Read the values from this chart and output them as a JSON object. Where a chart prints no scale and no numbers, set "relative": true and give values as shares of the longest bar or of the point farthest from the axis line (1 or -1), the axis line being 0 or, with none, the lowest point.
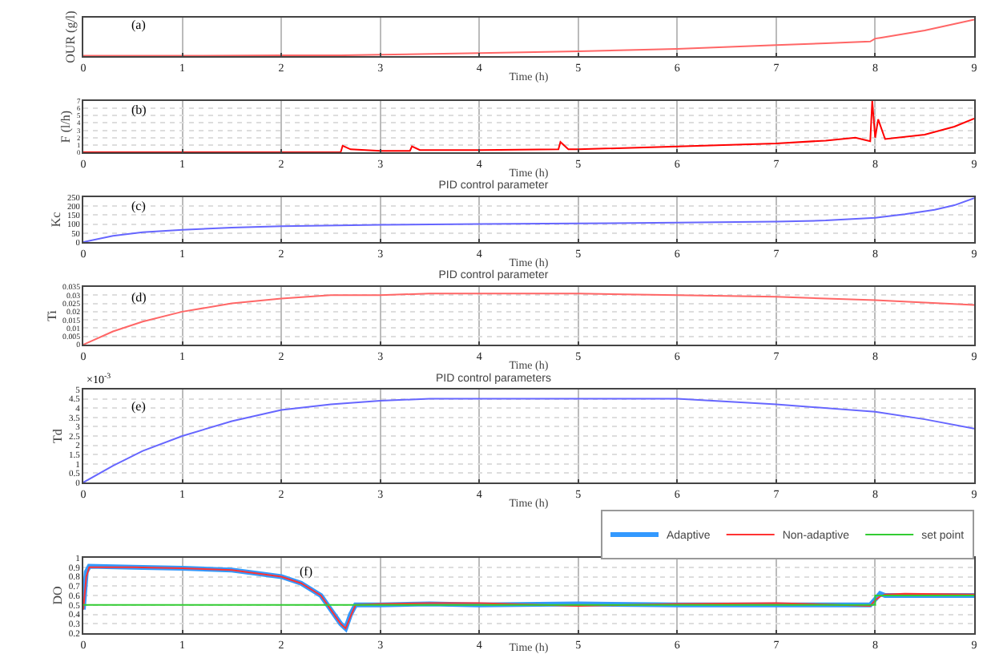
{
  "chart_data": [
    {
      "type": "line",
      "relative": true,
      "ylabel": "OUR (g/l)",
      "xlabel": "Time (h)",
      "annotations": [
        "(a)"
      ],
      "xlim": [
        0,
        9
      ],
      "xticks": [
        0,
        1,
        2,
        3,
        4,
        5,
        6,
        7,
        8,
        9
      ],
      "grid": true,
      "legend": false,
      "series": [
        {
          "color": "#ff6666",
          "x": [
            0,
            1,
            2,
            2.6,
            3,
            4,
            5,
            6,
            7,
            7.5,
            7.95,
            8.0,
            8.05,
            8.5,
            9
          ],
          "values": [
            0.01,
            0.01,
            0.02,
            0.02,
            0.04,
            0.08,
            0.13,
            0.2,
            0.3,
            0.35,
            0.4,
            0.48,
            0.5,
            0.7,
            1
          ]
        }
      ]
    },
    {
      "type": "line",
      "ylabel": "F (l/h)",
      "xlabel": "Time (h)",
      "annotations": [
        "(b)"
      ],
      "xlim": [
        0,
        9
      ],
      "xticks": [
        0,
        1,
        2,
        3,
        4,
        5,
        6,
        7,
        8,
        9
      ],
      "ylim": [
        0,
        7
      ],
      "yticks": [
        0,
        1,
        2,
        3,
        4,
        5,
        6,
        7
      ],
      "grid": true,
      "legend": false,
      "series": [
        {
          "color": "#ff0000",
          "x": [
            0,
            2.6,
            2.62,
            2.7,
            3,
            3.3,
            3.32,
            3.4,
            4,
            4.8,
            4.82,
            4.9,
            5,
            6,
            7,
            7.5,
            7.8,
            7.95,
            7.97,
            8.0,
            8.03,
            8.1,
            8.5,
            8.8,
            9
          ],
          "values": [
            0,
            0,
            0.9,
            0.4,
            0.2,
            0.2,
            0.8,
            0.3,
            0.3,
            0.4,
            1.4,
            0.4,
            0.4,
            0.8,
            1.2,
            1.6,
            2,
            1.5,
            7,
            2,
            4.5,
            1.8,
            2.4,
            3.5,
            4.6
          ]
        }
      ]
    },
    {
      "type": "line",
      "title": "PID control parameter",
      "ylabel": "Kc",
      "xlabel": "Time (h)",
      "annotations": [
        "(c)"
      ],
      "xlim": [
        0,
        9
      ],
      "xticks": [
        0,
        1,
        2,
        3,
        4,
        5,
        6,
        7,
        8,
        9
      ],
      "ylim": [
        0,
        250
      ],
      "yticks": [
        0,
        50,
        100,
        150,
        200,
        250
      ],
      "grid": true,
      "legend": false,
      "series": [
        {
          "color": "#6666ff",
          "x": [
            0,
            0.3,
            0.6,
            1,
            1.5,
            2,
            3,
            4,
            5,
            6,
            7,
            7.5,
            8,
            8.3,
            8.6,
            8.8,
            9
          ],
          "values": [
            0,
            35,
            55,
            68,
            80,
            88,
            96,
            100,
            104,
            108,
            114,
            120,
            135,
            155,
            180,
            205,
            245
          ]
        }
      ]
    },
    {
      "type": "line",
      "title": "PID control parameter",
      "ylabel": "Ti",
      "xlabel": "Time (h)",
      "annotations": [
        "(d)"
      ],
      "xlim": [
        0,
        9
      ],
      "xticks": [
        0,
        1,
        2,
        3,
        4,
        5,
        6,
        7,
        8,
        9
      ],
      "ylim": [
        0,
        0.035
      ],
      "yticks": [
        0,
        0.005,
        0.01,
        0.015,
        0.02,
        0.025,
        0.03,
        0.035
      ],
      "grid": true,
      "legend": false,
      "series": [
        {
          "color": "#ff6666",
          "x": [
            0,
            0.3,
            0.6,
            1,
            1.5,
            2,
            2.5,
            3,
            3.5,
            4,
            5,
            6,
            7,
            8,
            9
          ],
          "values": [
            0,
            0.008,
            0.014,
            0.02,
            0.025,
            0.028,
            0.03,
            0.03,
            0.031,
            0.031,
            0.031,
            0.03,
            0.029,
            0.027,
            0.024
          ]
        }
      ]
    },
    {
      "type": "line",
      "title": "PID control parameters",
      "ylabel": "Td",
      "xlabel": "Time (h)",
      "annotations": [
        "(e)",
        "×10$^{-3}$"
      ],
      "xlim": [
        0,
        9
      ],
      "xticks": [
        0,
        1,
        2,
        3,
        4,
        5,
        6,
        7,
        8,
        9
      ],
      "ylim": [
        0,
        5
      ],
      "yticks": [
        0,
        0.5,
        1,
        1.5,
        2,
        2.5,
        3,
        3.5,
        4,
        4.5,
        5
      ],
      "grid": true,
      "legend": false,
      "series": [
        {
          "color": "#6666ff",
          "x": [
            0,
            0.3,
            0.6,
            1,
            1.5,
            2,
            2.5,
            3,
            3.5,
            4,
            5,
            6,
            7,
            8,
            8.5,
            9
          ],
          "values": [
            0,
            0.9,
            1.7,
            2.5,
            3.3,
            3.9,
            4.2,
            4.4,
            4.5,
            4.5,
            4.5,
            4.5,
            4.2,
            3.8,
            3.4,
            2.9
          ]
        }
      ]
    },
    {
      "type": "line",
      "ylabel": "DO",
      "xlabel": "Time (h)",
      "annotations": [
        "(f)"
      ],
      "xlim": [
        0,
        9
      ],
      "xticks": [
        0,
        1,
        2,
        3,
        4,
        5,
        6,
        7,
        8,
        9
      ],
      "ylim": [
        0.2,
        1
      ],
      "yticks": [
        0.2,
        0.3,
        0.4,
        0.5,
        0.6,
        0.7,
        0.8,
        0.9,
        1
      ],
      "grid": true,
      "legend": "top",
      "series": [
        {
          "name": "Adaptive",
          "color": "#3399ff",
          "x": [
            0,
            0.03,
            0.06,
            0.5,
            1,
            1.5,
            2,
            2.2,
            2.4,
            2.5,
            2.6,
            2.65,
            2.7,
            2.75,
            3,
            3.5,
            4,
            5,
            6,
            7,
            7.95,
            8.0,
            8.05,
            8.1,
            8.3,
            9
          ],
          "values": [
            0.45,
            0.85,
            0.91,
            0.9,
            0.89,
            0.87,
            0.8,
            0.73,
            0.6,
            0.45,
            0.3,
            0.25,
            0.4,
            0.5,
            0.5,
            0.51,
            0.5,
            0.51,
            0.5,
            0.5,
            0.5,
            0.56,
            0.62,
            0.6,
            0.6,
            0.6
          ]
        },
        {
          "name": "Non-adaptive",
          "color": "#ff3333",
          "x": [
            0,
            0.03,
            0.06,
            0.5,
            1,
            1.5,
            2,
            2.2,
            2.4,
            2.5,
            2.6,
            2.65,
            2.7,
            2.75,
            3,
            3.5,
            4,
            5,
            6,
            7,
            7.95,
            8.0,
            8.05,
            8.1,
            8.3,
            9
          ],
          "values": [
            0.45,
            0.8,
            0.9,
            0.9,
            0.89,
            0.87,
            0.8,
            0.73,
            0.6,
            0.45,
            0.3,
            0.25,
            0.38,
            0.5,
            0.51,
            0.52,
            0.52,
            0.49,
            0.51,
            0.52,
            0.49,
            0.55,
            0.59,
            0.61,
            0.62,
            0.61
          ]
        },
        {
          "name": "set point",
          "color": "#33cc33",
          "type": "step",
          "x": [
            0,
            8,
            9
          ],
          "values": [
            0.5,
            0.6,
            0.6
          ]
        }
      ]
    }
  ]
}
